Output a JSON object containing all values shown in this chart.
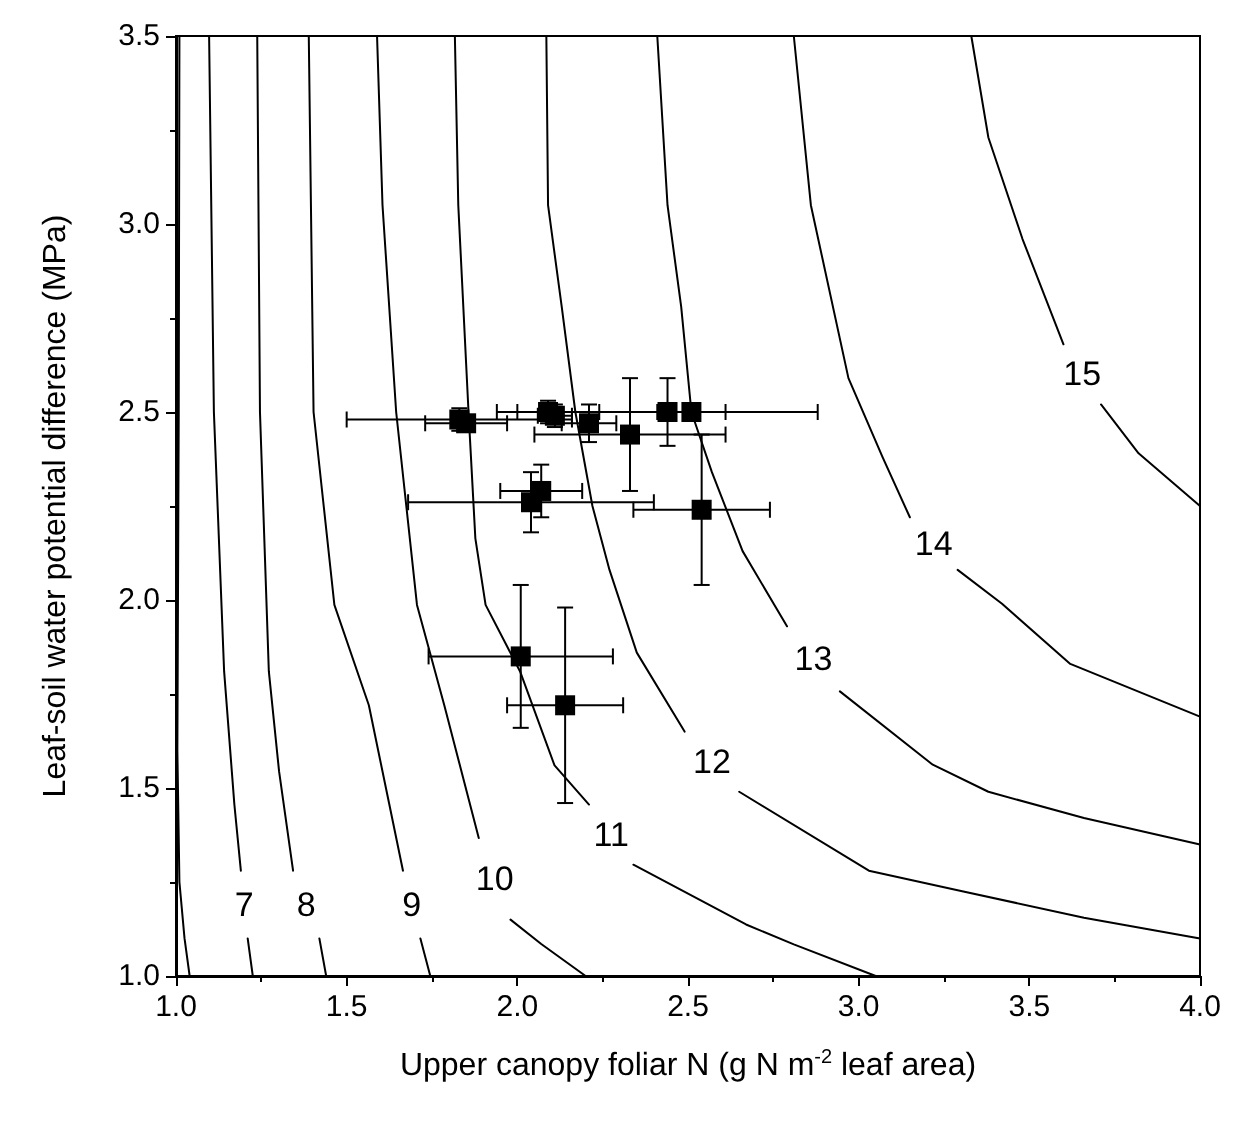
{
  "chart_data": {
    "type": "line",
    "xlabel": "Upper canopy foliar N (g N m$^{-2}$ leaf area)",
    "ylabel": "Leaf-soil water potential difference (MPa)",
    "xlim": [
      1,
      4
    ],
    "xticks": [
      {
        "value": 1,
        "label": "1.0"
      },
      {
        "value": 1.5,
        "label": "1.5"
      },
      {
        "value": 2,
        "label": "2.0"
      },
      {
        "value": 2.5,
        "label": "2.5"
      },
      {
        "value": 3,
        "label": "3.0"
      },
      {
        "value": 3.5,
        "label": "3.5"
      },
      {
        "value": 4,
        "label": "4.0"
      }
    ],
    "ylim": [
      1,
      3.5
    ],
    "yticks": [
      {
        "value": 1,
        "label": "1.0"
      },
      {
        "value": 1.5,
        "label": "1.5"
      },
      {
        "value": 2,
        "label": "2.0"
      },
      {
        "value": 2.5,
        "label": "2.5"
      },
      {
        "value": 3,
        "label": "3.0"
      },
      {
        "value": 3.5,
        "label": "3.5"
      }
    ],
    "grid": false,
    "legend": false,
    "line_style": "solid",
    "series": [
      {
        "color": "#000000",
        "x": [
          1.01,
          1.008,
          1.004,
          1.01,
          1.025,
          1.04
        ],
        "values": [
          3.5,
          2.5,
          1.6,
          1.25,
          1.1,
          1.0
        ]
      },
      {
        "name": "7",
        "color": "#000000",
        "x": [
          1.097,
          1.111,
          1.141,
          1.171,
          1.19,
          null,
          1.21,
          1.225
        ],
        "values": [
          3.5,
          2.5,
          1.81,
          1.456,
          1.28,
          null,
          1.1,
          1.0
        ]
      },
      {
        "name": "8",
        "color": "#000000",
        "x": [
          1.238,
          1.246,
          1.272,
          1.302,
          1.343,
          null,
          1.42,
          1.44
        ],
        "values": [
          3.5,
          2.5,
          1.81,
          1.544,
          1.28,
          null,
          1.1,
          1.0
        ]
      },
      {
        "name": "9",
        "color": "#000000",
        "x": [
          1.389,
          1.403,
          1.464,
          1.565,
          1.625,
          1.665,
          null,
          1.716,
          1.745
        ],
        "values": [
          3.5,
          2.5,
          1.987,
          1.72,
          1.456,
          1.28,
          null,
          1.1,
          1.0
        ]
      },
      {
        "name": "10",
        "color": "#000000",
        "x": [
          1.589,
          1.605,
          1.645,
          1.706,
          1.786,
          1.887,
          null,
          1.98,
          2.07,
          2.2
        ],
        "values": [
          3.5,
          3.05,
          2.5,
          1.987,
          1.72,
          1.367,
          null,
          1.15,
          1.085,
          1.0
        ]
      },
      {
        "name": "11",
        "color": "#000000",
        "x": [
          1.817,
          1.827,
          1.857,
          1.877,
          1.907,
          2.008,
          2.109,
          2.21,
          null,
          2.34,
          2.67,
          2.81,
          3.05
        ],
        "values": [
          3.5,
          3.05,
          2.5,
          2.164,
          1.987,
          1.81,
          1.56,
          1.456,
          null,
          1.296,
          1.137,
          1.084,
          1.0
        ]
      },
      {
        "name": "12",
        "color": "#000000",
        "x": [
          2.085,
          2.09,
          2.13,
          2.17,
          2.22,
          2.27,
          2.35,
          2.49,
          null,
          2.65,
          3.03,
          3.3,
          3.66,
          4.0
        ],
        "values": [
          3.5,
          3.05,
          2.78,
          2.5,
          2.25,
          2.08,
          1.86,
          1.65,
          null,
          1.49,
          1.28,
          1.226,
          1.155,
          1.1
        ]
      },
      {
        "name": "13",
        "color": "#000000",
        "x": [
          2.41,
          2.44,
          2.48,
          2.51,
          2.57,
          2.66,
          2.79,
          null,
          2.945,
          3.217,
          3.38,
          3.66,
          4.0
        ],
        "values": [
          3.5,
          3.05,
          2.78,
          2.5,
          2.34,
          2.13,
          1.93,
          null,
          1.757,
          1.562,
          1.49,
          1.42,
          1.35
        ]
      },
      {
        "name": "14",
        "color": "#000000",
        "x": [
          2.81,
          2.86,
          2.97,
          3.07,
          3.15,
          null,
          3.29,
          3.42,
          3.62,
          4.0
        ],
        "values": [
          3.5,
          3.05,
          2.59,
          2.38,
          2.22,
          null,
          2.08,
          1.99,
          1.83,
          1.69
        ]
      },
      {
        "name": "15",
        "color": "#000000",
        "x": [
          3.33,
          3.38,
          3.48,
          3.6,
          null,
          3.71,
          3.82,
          4.0
        ],
        "values": [
          3.5,
          3.23,
          2.96,
          2.68,
          null,
          2.52,
          2.39,
          2.25
        ]
      },
      {
        "type": "scatter",
        "marker": "square",
        "color": "#000000",
        "x": [
          1.83,
          1.85,
          2.09,
          2.11,
          2.21,
          2.33,
          2.44,
          2.51,
          2.07,
          2.04,
          2.54,
          2.01,
          2.14
        ],
        "values": [
          2.48,
          2.47,
          2.5,
          2.49,
          2.47,
          2.44,
          2.5,
          2.5,
          2.29,
          2.26,
          2.24,
          1.85,
          1.72
        ],
        "xerrors": [
          0.33,
          0.12,
          0.15,
          0.05,
          0.08,
          0.28,
          0.44,
          0.1,
          0.12,
          0.36,
          0.2,
          0.27,
          0.17
        ],
        "errors": [
          0.03,
          null,
          0.03,
          0.03,
          0.05,
          0.15,
          0.09,
          null,
          0.07,
          0.08,
          0.2,
          0.19,
          0.26
        ]
      }
    ]
  }
}
